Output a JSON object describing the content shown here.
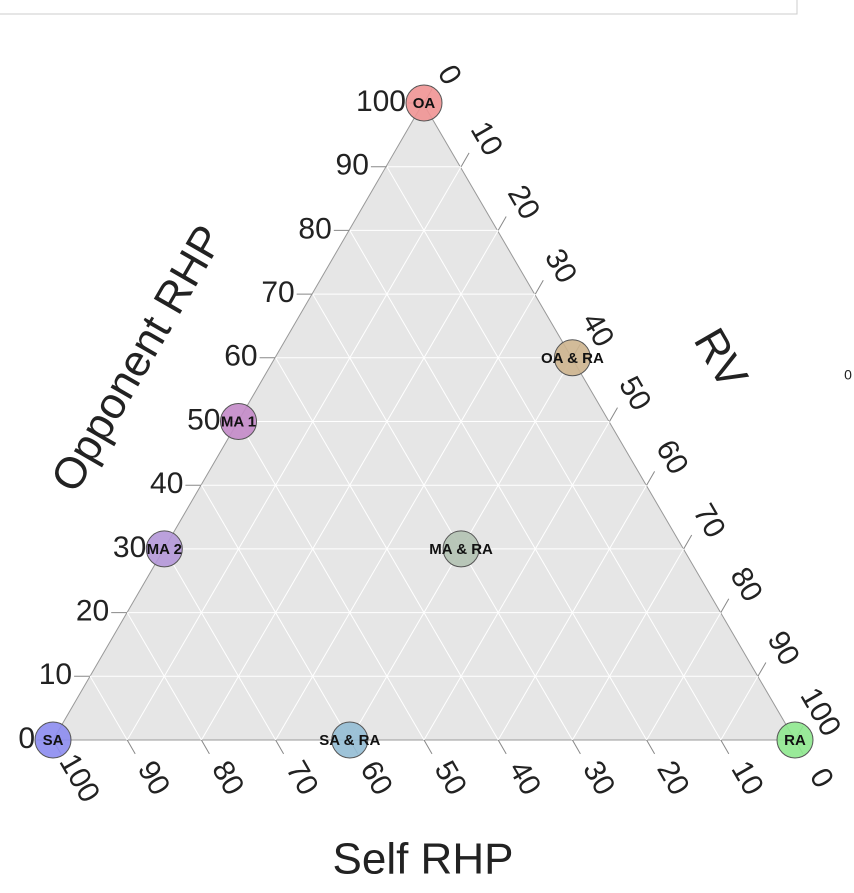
{
  "chart_data": {
    "type": "ternary",
    "side_label": "0",
    "a_axis": {
      "title": "Opponent RHP",
      "ticks": [
        0,
        10,
        20,
        30,
        40,
        50,
        60,
        70,
        80,
        90,
        100
      ]
    },
    "b_axis": {
      "title": "Self RHP",
      "ticks": [
        0,
        10,
        20,
        30,
        40,
        50,
        60,
        70,
        80,
        90,
        100
      ]
    },
    "c_axis": {
      "title": "RV",
      "ticks": [
        0,
        10,
        20,
        30,
        40,
        50,
        60,
        70,
        80,
        90,
        100
      ]
    },
    "points": [
      {
        "label": "OA",
        "opponent": 100,
        "self": 0,
        "rv": 0,
        "color": "#f09494"
      },
      {
        "label": "SA",
        "opponent": 0,
        "self": 100,
        "rv": 0,
        "color": "#8c8cf0"
      },
      {
        "label": "RA",
        "opponent": 0,
        "self": 0,
        "rv": 100,
        "color": "#8ee88e"
      },
      {
        "label": "MA 1",
        "opponent": 50,
        "self": 50,
        "rv": 0,
        "color": "#c38ac8"
      },
      {
        "label": "MA 2",
        "opponent": 30,
        "self": 70,
        "rv": 0,
        "color": "#b497d8"
      },
      {
        "label": "OA & RA",
        "opponent": 60,
        "self": 0,
        "rv": 40,
        "color": "#cdb48e"
      },
      {
        "label": "MA & RA",
        "opponent": 30,
        "self": 30,
        "rv": 40,
        "color": "#b3c2b3"
      },
      {
        "label": "SA & RA",
        "opponent": 0,
        "self": 60,
        "rv": 40,
        "color": "#93bcd4"
      }
    ]
  }
}
